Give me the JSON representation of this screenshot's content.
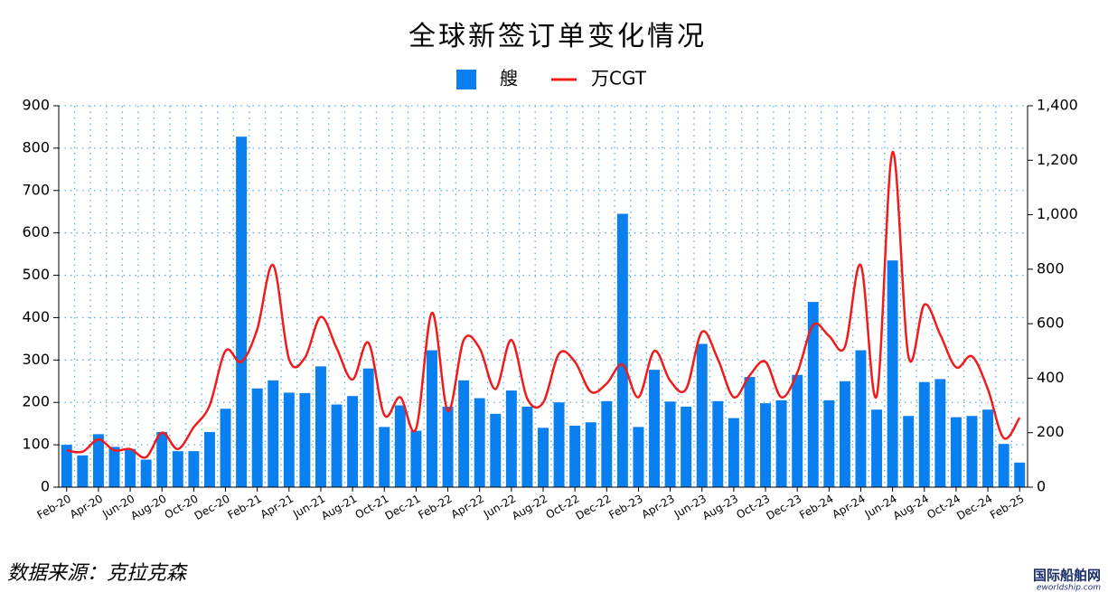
{
  "chart_data": {
    "type": "bar-line",
    "title": "全球新签订单变化情况",
    "categories": [
      "Feb-20",
      null,
      "Apr-20",
      null,
      "Jun-20",
      null,
      "Aug-20",
      null,
      "Oct-20",
      null,
      "Dec-20",
      null,
      "Feb-21",
      null,
      "Apr-21",
      null,
      "Jun-21",
      null,
      "Aug-21",
      null,
      "Oct-21",
      null,
      "Dec-21",
      null,
      "Feb-22",
      null,
      "Apr-22",
      null,
      "Jun-22",
      null,
      "Aug-22",
      null,
      "Oct-22",
      null,
      "Dec-22",
      null,
      "Feb-23",
      null,
      "Apr-23",
      null,
      "Jun-23",
      null,
      "Aug-23",
      null,
      "Oct-23",
      null,
      "Dec-23",
      null,
      "Feb-24",
      null,
      "Apr-24",
      null,
      "Jun-24",
      null,
      "Aug-24",
      null,
      "Oct-24",
      null,
      "Dec-24",
      null,
      "Feb-25"
    ],
    "series": [
      {
        "name": "艘",
        "type": "bar",
        "color": "#0a7ff0",
        "axis": "y",
        "values": [
          100,
          75,
          125,
          95,
          90,
          65,
          130,
          85,
          85,
          130,
          185,
          827,
          233,
          252,
          223,
          222,
          285,
          195,
          215,
          280,
          142,
          193,
          133,
          323,
          190,
          252,
          210,
          173,
          228,
          190,
          140,
          200,
          145,
          153,
          203,
          645,
          142,
          277,
          202,
          190,
          338,
          203,
          163,
          260,
          198,
          205,
          265,
          437,
          205,
          250,
          323,
          183,
          535,
          168,
          248,
          255,
          165,
          168,
          183,
          102,
          58
        ]
      },
      {
        "name": "万CGT",
        "type": "line",
        "color": "#ee1c1c",
        "axis": "y2",
        "values": [
          135,
          130,
          175,
          135,
          140,
          110,
          200,
          140,
          220,
          300,
          500,
          460,
          580,
          815,
          470,
          475,
          625,
          510,
          395,
          530,
          265,
          330,
          215,
          640,
          280,
          540,
          510,
          360,
          540,
          325,
          310,
          490,
          460,
          350,
          380,
          450,
          330,
          500,
          390,
          360,
          570,
          470,
          330,
          410,
          460,
          330,
          420,
          595,
          555,
          515,
          815,
          335,
          1230,
          480,
          670,
          560,
          440,
          480,
          360,
          180,
          255
        ]
      }
    ],
    "ylim": [
      0,
      900
    ],
    "yticks": [
      0,
      100,
      200,
      300,
      400,
      500,
      600,
      700,
      800,
      900
    ],
    "y2lim": [
      0,
      1400
    ],
    "y2ticks": [
      0,
      200,
      400,
      600,
      800,
      {
        "value": 1000,
        "label": "1,000"
      },
      {
        "value": 1200,
        "label": "1,200"
      },
      {
        "value": 1400,
        "label": "1,400"
      }
    ],
    "grid": true,
    "legend": "top"
  },
  "source": "数据来源：克拉克森",
  "watermark": {
    "title": "国际船舶网",
    "url": "eworldship.com"
  }
}
